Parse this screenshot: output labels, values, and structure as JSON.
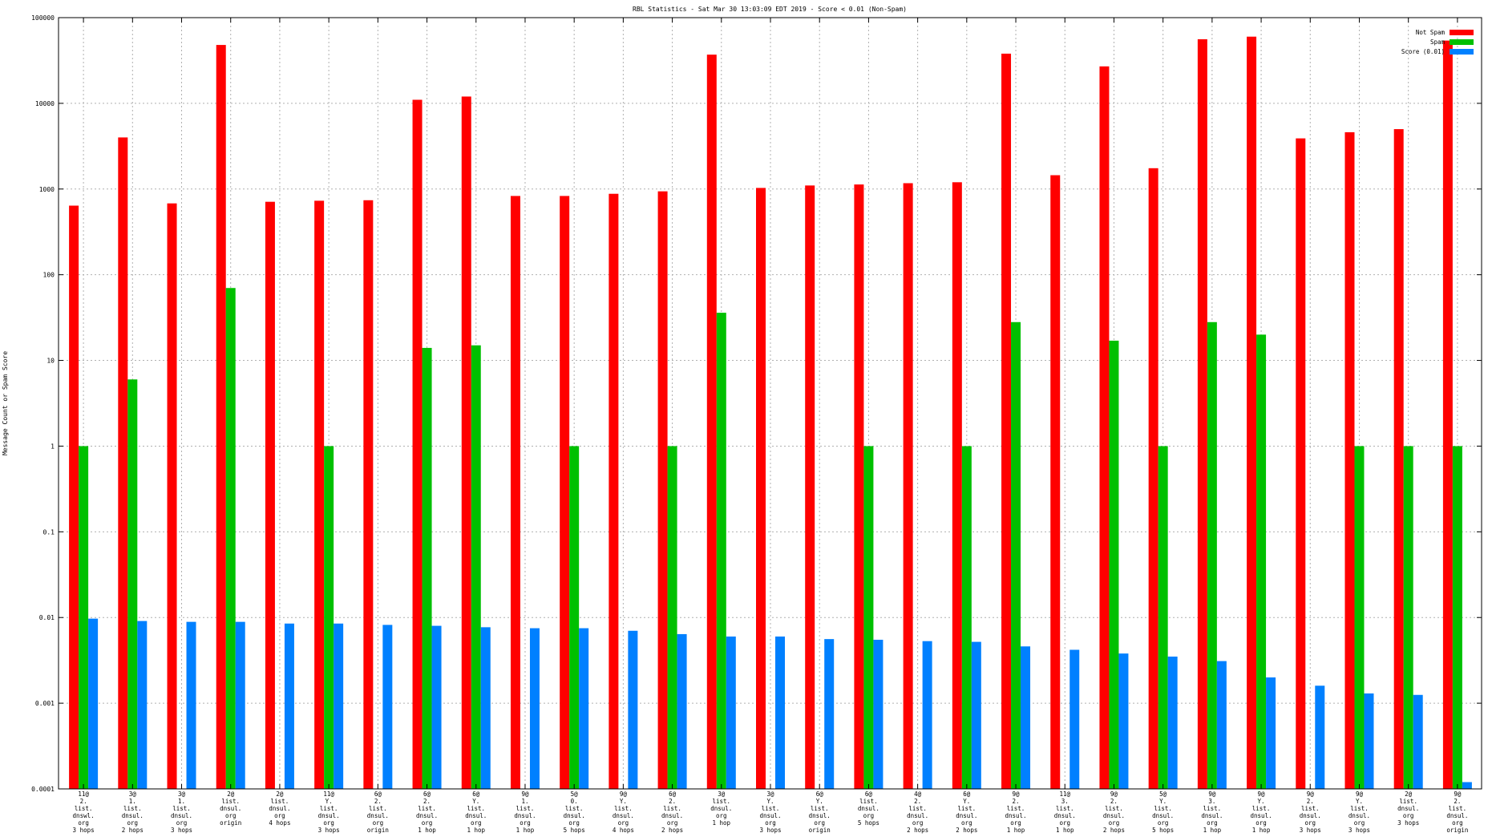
{
  "chart_data": {
    "type": "bar",
    "title": "RBL Statistics - Sat Mar 30 13:03:09 EDT 2019 - Score < 0.01 (Non-Spam)",
    "ylabel": "Message Count or Spam Score",
    "xlabel": "",
    "yscale": "log",
    "ylim": [
      0.0001,
      100000
    ],
    "yticks": [
      "0.0001",
      "0.001",
      "0.01",
      "0.1",
      "1",
      "10",
      "100",
      "1000",
      "10000",
      "100000"
    ],
    "grid": true,
    "legend_position": "top-right",
    "categories": [
      [
        "11@",
        "2.",
        "list.",
        "dnswl.",
        "org",
        "3 hops"
      ],
      [
        "3@",
        "1.",
        "list.",
        "dnsul.",
        "org",
        "2 hops"
      ],
      [
        "3@",
        "1.",
        "list.",
        "dnsul.",
        "org",
        "3 hops"
      ],
      [
        "2@",
        "list.",
        "dnsul.",
        "org",
        "origin"
      ],
      [
        "2@",
        "list.",
        "dnsul.",
        "org",
        "4 hops"
      ],
      [
        "11@",
        "Y.",
        "list.",
        "dnsul.",
        "org",
        "3 hops"
      ],
      [
        "6@",
        "2.",
        "list.",
        "dnsul.",
        "org",
        "origin"
      ],
      [
        "6@",
        "2.",
        "list.",
        "dnsul.",
        "org",
        "1 hop"
      ],
      [
        "6@",
        "Y.",
        "list.",
        "dnsul.",
        "org",
        "1 hop"
      ],
      [
        "9@",
        "1.",
        "list.",
        "dnsul.",
        "org",
        "1 hop"
      ],
      [
        "5@",
        "0.",
        "list.",
        "dnsul.",
        "org",
        "5 hops"
      ],
      [
        "9@",
        "Y.",
        "list.",
        "dnsul.",
        "org",
        "4 hops"
      ],
      [
        "6@",
        "2.",
        "list.",
        "dnsul.",
        "org",
        "2 hops"
      ],
      [
        "3@",
        "list.",
        "dnsul.",
        "org",
        "1 hop"
      ],
      [
        "3@",
        "Y.",
        "list.",
        "dnsul.",
        "org",
        "3 hops"
      ],
      [
        "6@",
        "Y.",
        "list.",
        "dnsul.",
        "org",
        "origin"
      ],
      [
        "6@",
        "list.",
        "dnsul.",
        "org",
        "5 hops"
      ],
      [
        "4@",
        "2.",
        "list.",
        "dnsul.",
        "org",
        "2 hops"
      ],
      [
        "6@",
        "Y.",
        "list.",
        "dnsul.",
        "org",
        "2 hops"
      ],
      [
        "9@",
        "2.",
        "list.",
        "dnsul.",
        "org",
        "1 hop"
      ],
      [
        "11@",
        "3.",
        "list.",
        "dnsul.",
        "org",
        "1 hop"
      ],
      [
        "9@",
        "2.",
        "list.",
        "dnsul.",
        "org",
        "2 hops"
      ],
      [
        "5@",
        "Y.",
        "list.",
        "dnsul.",
        "org",
        "5 hops"
      ],
      [
        "9@",
        "3.",
        "list.",
        "dnsul.",
        "org",
        "1 hop"
      ],
      [
        "9@",
        "Y.",
        "list.",
        "dnsul.",
        "org",
        "1 hop"
      ],
      [
        "9@",
        "2.",
        "list.",
        "dnsul.",
        "org",
        "3 hops"
      ],
      [
        "9@",
        "Y.",
        "list.",
        "dnsul.",
        "org",
        "3 hops"
      ],
      [
        "2@",
        "list.",
        "dnsul.",
        "org",
        "3 hops"
      ],
      [
        "9@",
        "2.",
        "list.",
        "dnsul.",
        "org",
        "origin"
      ]
    ],
    "series": [
      {
        "name": "Not Spam",
        "color": "#ff0000",
        "values": [
          640,
          4000,
          680,
          48000,
          710,
          730,
          740,
          11000,
          12000,
          830,
          830,
          880,
          940,
          37000,
          1030,
          1100,
          1130,
          1170,
          1200,
          38000,
          1450,
          27000,
          1750,
          56000,
          60000,
          3900,
          4600,
          5000,
          54000
        ]
      },
      {
        "name": "Spam",
        "color": "#00c000",
        "values": [
          1,
          6,
          null,
          70,
          null,
          1,
          null,
          14,
          15,
          null,
          1,
          null,
          1,
          36,
          null,
          null,
          1,
          null,
          1,
          28,
          null,
          17,
          1,
          28,
          20,
          null,
          1,
          1,
          1
        ]
      },
      {
        "name": "Score (0.01)",
        "color": "#0080ff",
        "values": [
          0.0097,
          0.0091,
          0.0089,
          0.0089,
          0.0085,
          0.0085,
          0.0082,
          0.008,
          0.0077,
          0.0075,
          0.0075,
          0.007,
          0.0064,
          0.006,
          0.006,
          0.0056,
          0.0055,
          0.0053,
          0.0052,
          0.0046,
          0.0042,
          0.0038,
          0.0035,
          0.0031,
          0.002,
          0.0016,
          0.0013,
          0.00125,
          0.00012
        ]
      }
    ]
  }
}
